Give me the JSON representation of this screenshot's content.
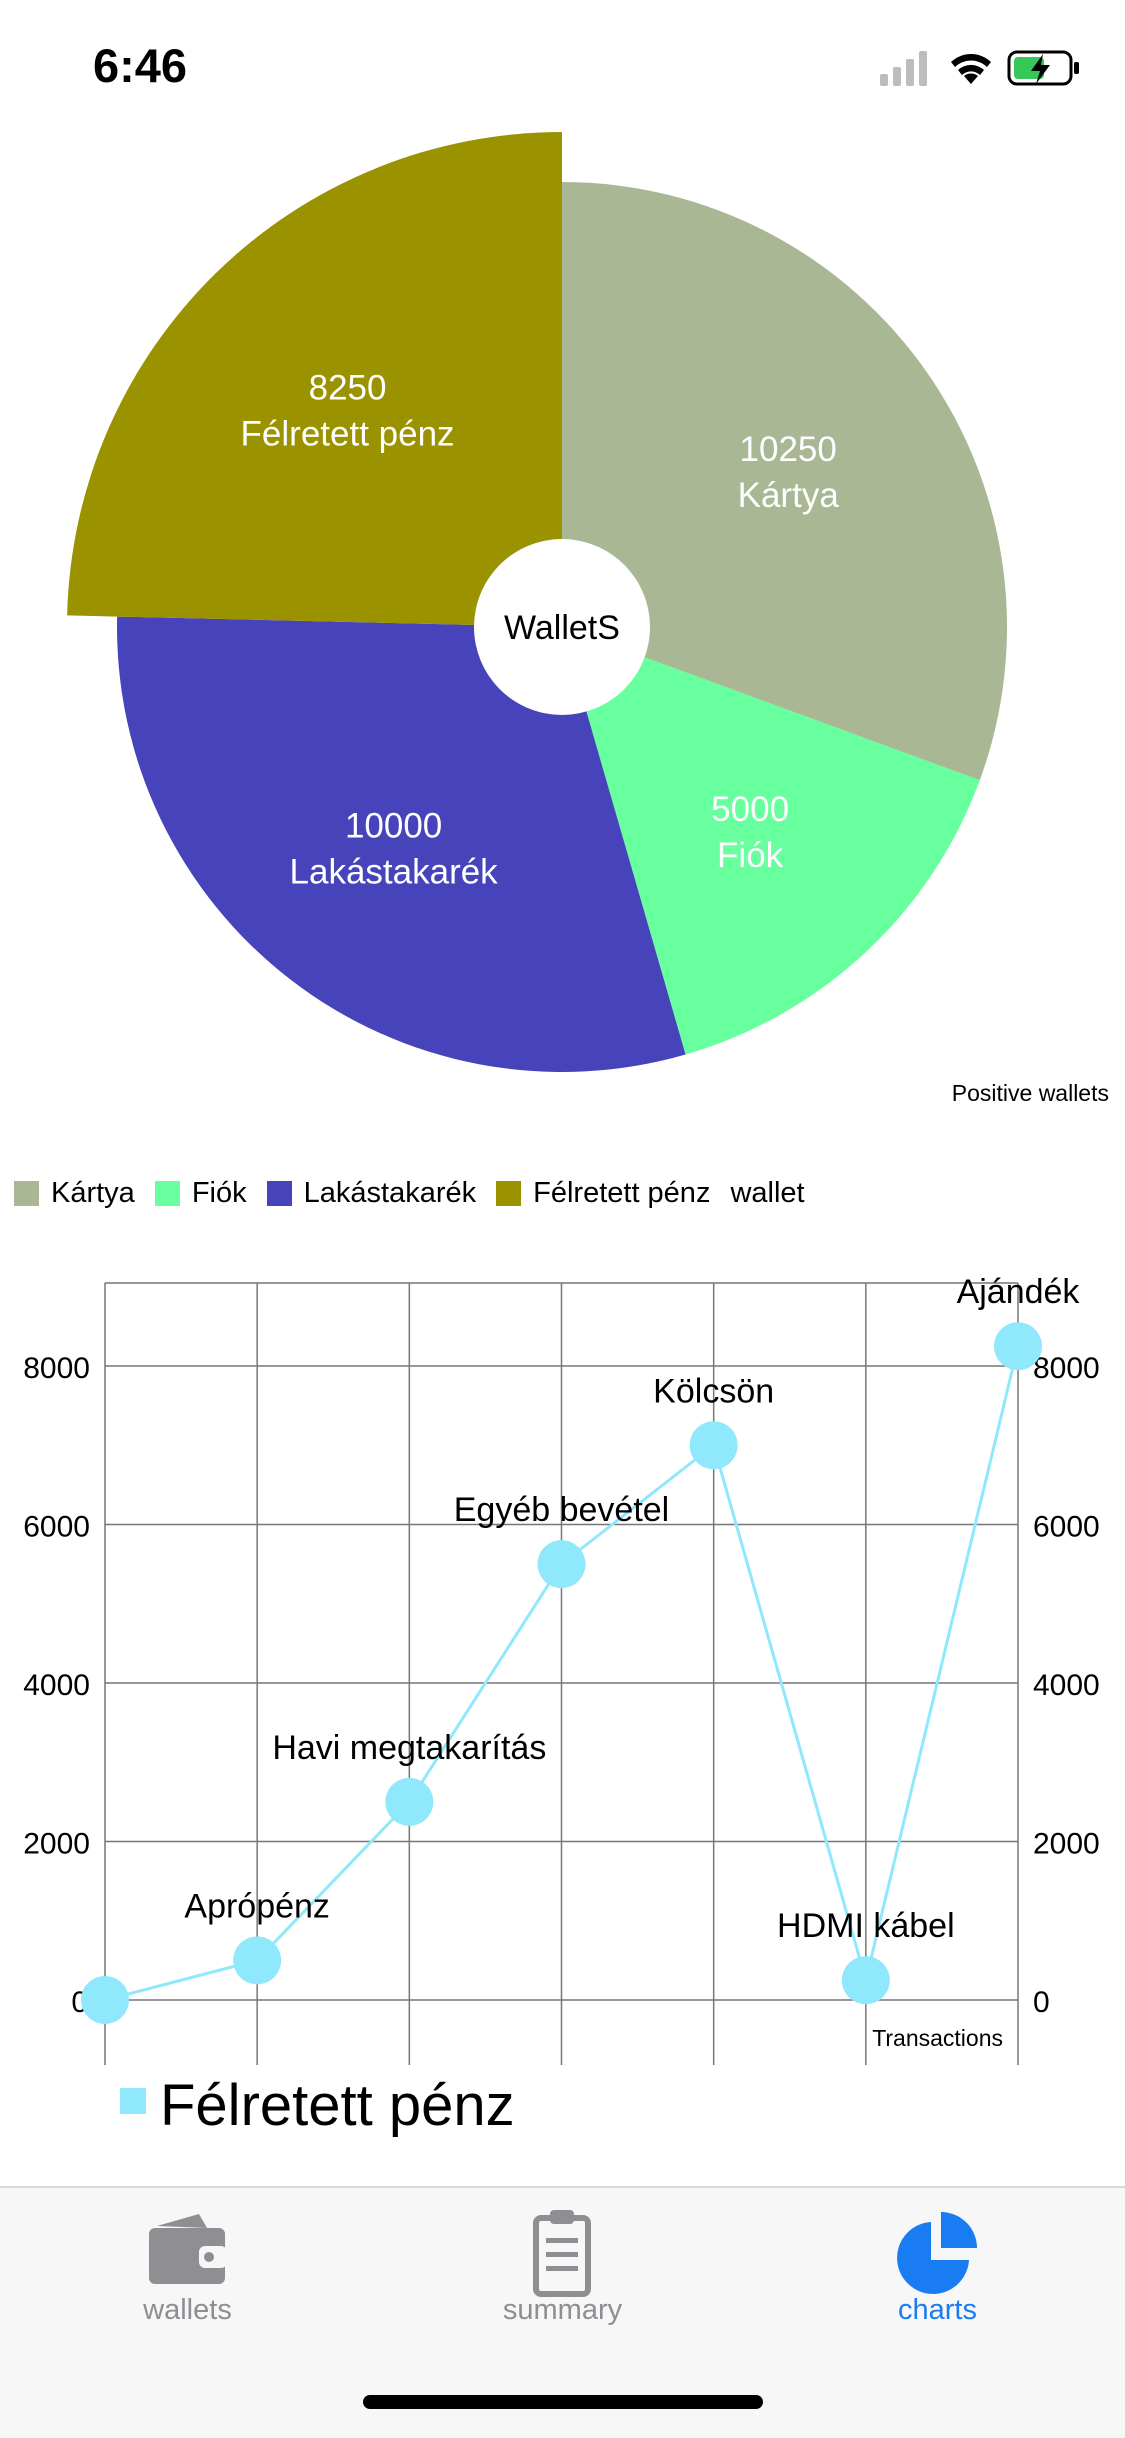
{
  "status_bar": {
    "time": "6:46",
    "icons": [
      "signal-icon",
      "wifi-icon",
      "battery-charging-icon"
    ]
  },
  "chart_data": [
    {
      "type": "pie",
      "center_label": "WalletS",
      "caption": "Positive wallets",
      "slices": [
        {
          "value": 10250,
          "label": "Kártya",
          "color": "#a9b795",
          "explode": false
        },
        {
          "value": 5000,
          "label": "Fiók",
          "color": "#68ff9e",
          "explode": false
        },
        {
          "value": 10000,
          "label": "Lakástakarék",
          "color": "#4643bb",
          "explode": false
        },
        {
          "value": 8250,
          "label": "Félretett pénz",
          "color": "#9b9200",
          "explode": true
        }
      ],
      "legend": {
        "placement": "bottom",
        "entries": [
          "Kártya",
          "Fiók",
          "Lakástakarék",
          "Félretett pénz"
        ],
        "suffix": "wallet"
      }
    },
    {
      "type": "line",
      "caption": "Transactions",
      "series": [
        {
          "name": "Félretett pénz",
          "color": "#8fe8fb",
          "points": [
            {
              "label": "",
              "value": 0
            },
            {
              "label": "Aprópénz",
              "value": 500
            },
            {
              "label": "Havi megtakarítás",
              "value": 2500
            },
            {
              "label": "Egyéb bevétel",
              "value": 5500
            },
            {
              "label": "Kölcsön",
              "value": 7000
            },
            {
              "label": "HDMI kábel",
              "value": 250
            },
            {
              "label": "Ajándék",
              "value": 8250
            }
          ]
        }
      ],
      "y_ticks": [
        0,
        2000,
        4000,
        6000,
        8000
      ],
      "ylim": [
        -800,
        9100
      ],
      "grid": true,
      "legend_placement": "bottom-left"
    }
  ],
  "tabs": [
    {
      "label": "wallets",
      "icon": "wallet-icon",
      "active": false
    },
    {
      "label": "summary",
      "icon": "clipboard-icon",
      "active": false
    },
    {
      "label": "charts",
      "icon": "pie-chart-icon",
      "active": true
    }
  ],
  "colors": {
    "tab_active": "#1a7cf2",
    "tab_inactive": "#8e8e93"
  }
}
